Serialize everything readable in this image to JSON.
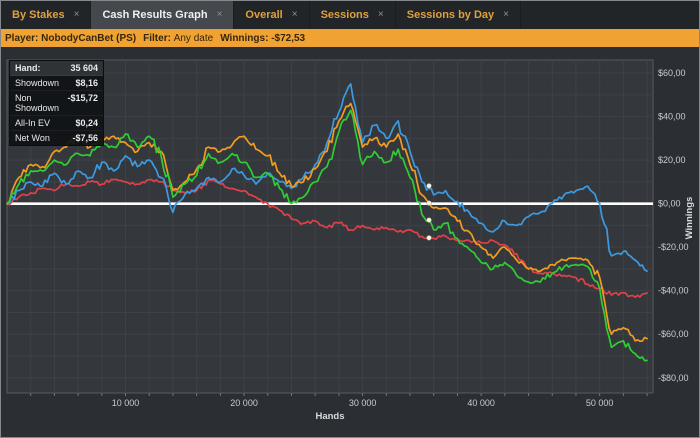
{
  "tabs": {
    "close_glyph": "×",
    "items": [
      {
        "label": "By Stakes",
        "active": false
      },
      {
        "label": "Cash Results Graph",
        "active": true
      },
      {
        "label": "Overall",
        "active": false
      },
      {
        "label": "Sessions",
        "active": false
      },
      {
        "label": "Sessions by Day",
        "active": false
      }
    ]
  },
  "info_bar": {
    "player_label": "Player: ",
    "player_value": "NobodyCanBet (PS)",
    "filter_label": "Filter: ",
    "filter_value": "Any date",
    "winnings_label": "Winnings: ",
    "winnings_value": "-$72,53"
  },
  "tooltip": {
    "hand_label": "Hand:",
    "hand_value": "35 604",
    "rows": [
      {
        "label": "Showdown",
        "value": "$8,16"
      },
      {
        "label": "Non Showdown",
        "value": "-$15,72"
      },
      {
        "label": "All-In EV",
        "value": "$0,24"
      },
      {
        "label": "Net Won",
        "value": "-$7,56"
      }
    ]
  },
  "chart_data": {
    "type": "line",
    "title": "",
    "xlabel": "Hands",
    "ylabel": "Winnings",
    "xlim": [
      0,
      54500
    ],
    "ylim": [
      -87,
      66
    ],
    "grid": true,
    "grid_step_x_hands": 2000,
    "grid_step_y_dollars": 10,
    "zero_line": 0,
    "x_ticks": [
      10000,
      20000,
      30000,
      40000,
      50000
    ],
    "x_tick_labels": [
      "10 000",
      "20 000",
      "30 000",
      "40 000",
      "50 000"
    ],
    "y_ticks": [
      60,
      40,
      20,
      0,
      -20,
      -40,
      -60,
      -80
    ],
    "y_tick_labels": [
      "$60,00",
      "$40,00",
      "$20,00",
      "$0,00",
      "-$20,00",
      "-$40,00",
      "-$60,00",
      "-$80,00"
    ],
    "x": [
      0,
      1000,
      2000,
      3000,
      4000,
      5000,
      6000,
      7000,
      8000,
      9000,
      10000,
      11000,
      12000,
      13000,
      14000,
      15000,
      16000,
      17000,
      18000,
      19000,
      20000,
      21000,
      22000,
      23000,
      24000,
      25000,
      26000,
      27000,
      28000,
      29000,
      30000,
      31000,
      32000,
      33000,
      34000,
      35000,
      36000,
      37000,
      38000,
      39000,
      40000,
      41000,
      42000,
      43000,
      44000,
      45000,
      46000,
      47000,
      48000,
      49000,
      50000,
      51000,
      52000,
      53000,
      54000
    ],
    "series": [
      {
        "name": "Showdown",
        "color": "#3d9ae0",
        "values": [
          0,
          6,
          10,
          8,
          14,
          9,
          15,
          12,
          19,
          15,
          22,
          17,
          20,
          12,
          -4,
          4,
          7,
          12,
          10,
          16,
          13,
          9,
          14,
          10,
          7,
          12,
          18,
          28,
          42,
          55,
          28,
          36,
          30,
          38,
          24,
          10,
          4,
          6,
          1,
          -4,
          -9,
          -13,
          -8,
          -10,
          -6,
          -4,
          0,
          4,
          6,
          8,
          0,
          -24,
          -22,
          -26,
          -31
        ]
      },
      {
        "name": "Non Showdown",
        "color": "#df4148",
        "values": [
          0,
          3,
          5,
          7,
          6,
          9,
          8,
          10,
          9,
          11,
          10,
          9,
          11,
          10,
          7,
          5,
          6,
          11,
          9,
          7,
          6,
          3,
          0,
          -3,
          -7,
          -9,
          -8,
          -11,
          -9,
          -12,
          -10,
          -12,
          -11,
          -13,
          -12,
          -15,
          -16,
          -15,
          -17,
          -17,
          -18,
          -17,
          -19,
          -23,
          -30,
          -32,
          -32,
          -33,
          -34,
          -37,
          -39,
          -42,
          -41,
          -43,
          -41
        ]
      },
      {
        "name": "All-In EV",
        "color": "#f29c20",
        "values": [
          0,
          12,
          18,
          17,
          24,
          26,
          31,
          26,
          29,
          31,
          28,
          24,
          28,
          24,
          6,
          10,
          16,
          26,
          24,
          27,
          31,
          25,
          22,
          14,
          8,
          10,
          16,
          24,
          38,
          46,
          26,
          30,
          26,
          32,
          18,
          4,
          -2,
          -2,
          -8,
          -13,
          -20,
          -25,
          -20,
          -26,
          -30,
          -31,
          -28,
          -26,
          -25,
          -26,
          -34,
          -60,
          -57,
          -63,
          -62
        ]
      },
      {
        "name": "Net Won",
        "color": "#2fce32",
        "values": [
          0,
          9,
          15,
          15,
          20,
          18,
          23,
          22,
          28,
          26,
          32,
          26,
          31,
          22,
          3,
          9,
          13,
          23,
          19,
          23,
          19,
          12,
          14,
          7,
          0,
          3,
          10,
          17,
          33,
          43,
          18,
          24,
          19,
          25,
          12,
          -5,
          -12,
          -9,
          -16,
          -21,
          -27,
          -30,
          -27,
          -33,
          -36,
          -36,
          -32,
          -29,
          -28,
          -29,
          -39,
          -66,
          -63,
          -69,
          -72
        ]
      }
    ],
    "cursor": {
      "hand": 35604,
      "values": {
        "Showdown": 8.16,
        "Non Showdown": -15.72,
        "All-In EV": 0.24,
        "Net Won": -7.56
      }
    }
  }
}
